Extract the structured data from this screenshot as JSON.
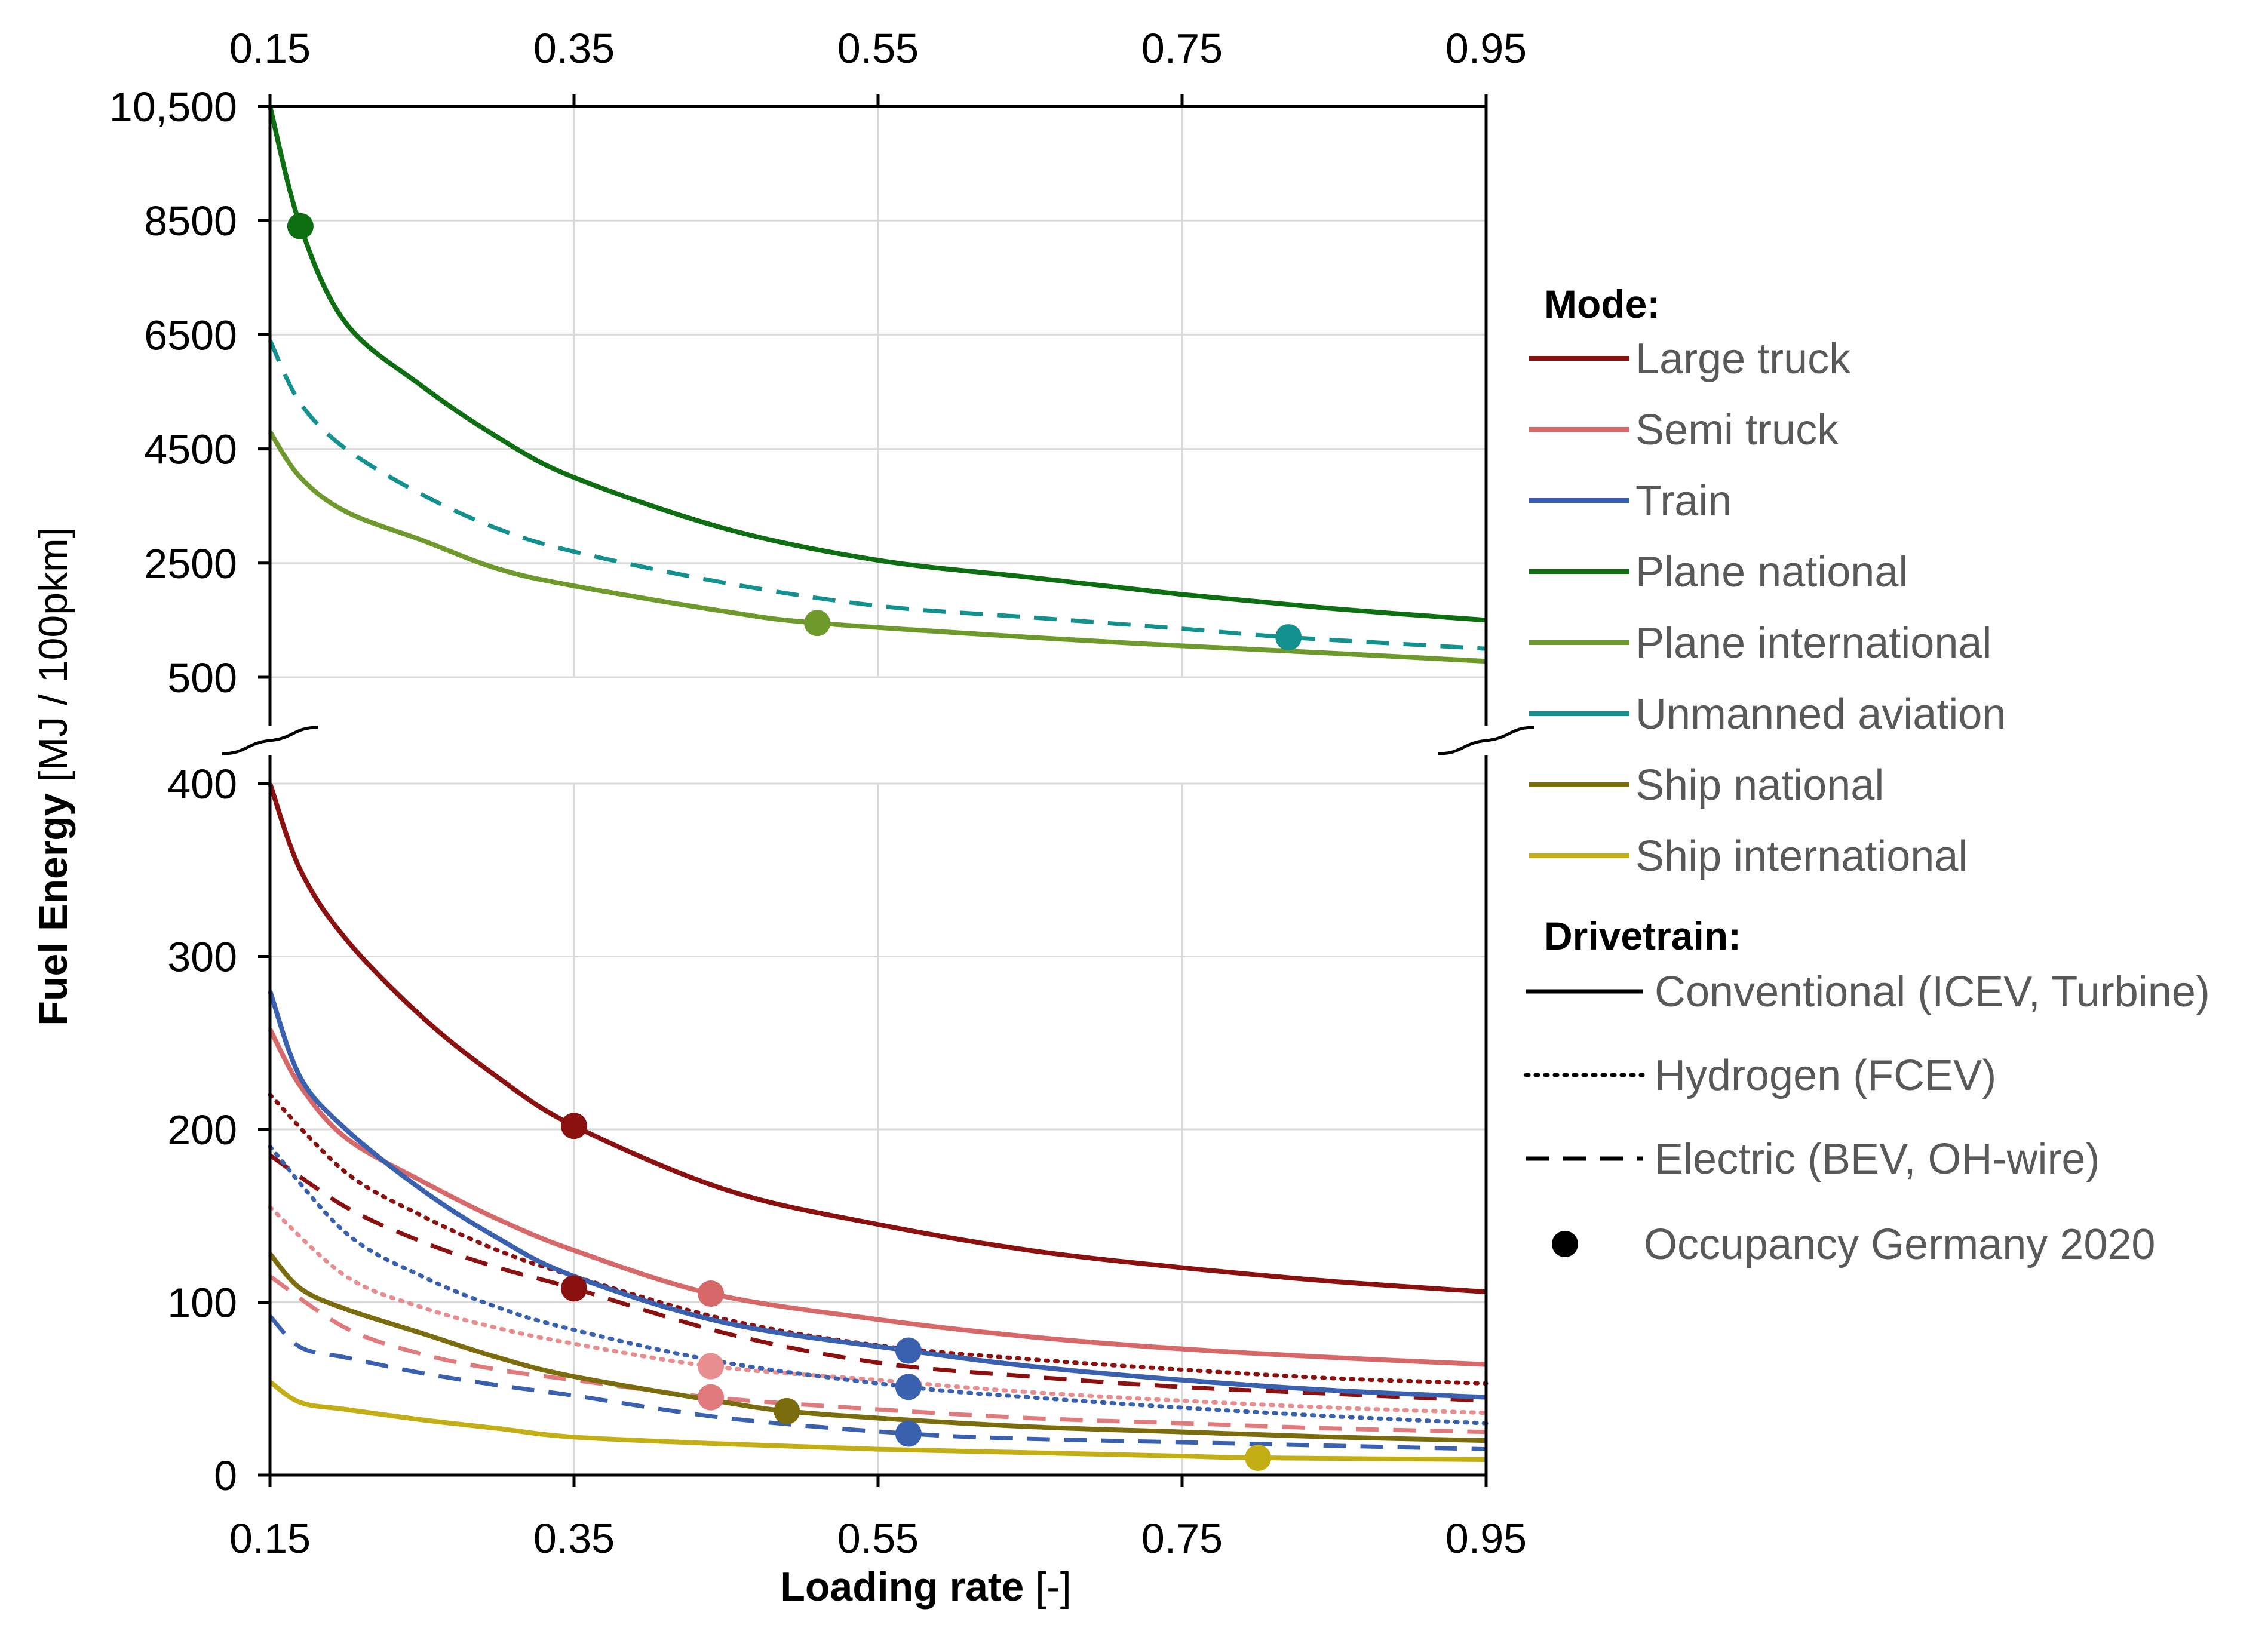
{
  "chart_data": {
    "type": "line",
    "title": "",
    "xlabel_bold": "Loading rate",
    "xlabel_unit": " [-]",
    "ylabel_bold": "Fuel Energy",
    "ylabel_unit": " [MJ / 100pkm]",
    "xlim": [
      0.15,
      0.95
    ],
    "x_ticks": [
      0.15,
      0.35,
      0.55,
      0.75,
      0.95
    ],
    "x_tick_labels": [
      "0.15",
      "0.35",
      "0.55",
      "0.75",
      "0.95"
    ],
    "upper_panel": {
      "ylim": [
        500,
        10500
      ],
      "y_ticks": [
        500,
        2500,
        4500,
        6500,
        8500,
        10500
      ],
      "y_tick_labels": [
        "500",
        "2500",
        "4500",
        "6500",
        "8500",
        "10,500"
      ]
    },
    "lower_panel": {
      "ylim": [
        0,
        400
      ],
      "y_ticks": [
        0,
        100,
        200,
        300,
        400
      ],
      "y_tick_labels": [
        "0",
        "100",
        "200",
        "300",
        "400"
      ]
    },
    "grid": true,
    "axis_break": true,
    "legend_position": "right",
    "series": [
      {
        "id": "plane-national-conventional",
        "mode": "Plane national",
        "drivetrain": "Conventional",
        "panel": "upper",
        "color": "#0e6e12",
        "dash": "solid",
        "x": [
          0.15,
          0.17,
          0.2,
          0.25,
          0.3,
          0.35,
          0.45,
          0.55,
          0.65,
          0.75,
          0.85,
          0.95
        ],
        "y": [
          10500,
          8400,
          6700,
          5600,
          4700,
          4000,
          3100,
          2550,
          2250,
          1950,
          1700,
          1500
        ],
        "occupancy": {
          "x": 0.17,
          "y": 8400
        }
      },
      {
        "id": "unmanned-aviation-electric",
        "mode": "Unmanned aviation",
        "drivetrain": "Electric",
        "panel": "upper",
        "color": "#13918f",
        "dash": "dashed",
        "x": [
          0.15,
          0.17,
          0.2,
          0.25,
          0.3,
          0.35,
          0.45,
          0.55,
          0.65,
          0.75,
          0.82,
          0.95
        ],
        "y": [
          6400,
          5300,
          4500,
          3700,
          3100,
          2700,
          2150,
          1750,
          1550,
          1350,
          1200,
          1000
        ],
        "occupancy": {
          "x": 0.82,
          "y": 1200
        }
      },
      {
        "id": "plane-international-conventional",
        "mode": "Plane international",
        "drivetrain": "Conventional",
        "panel": "upper",
        "color": "#6e9a2c",
        "dash": "solid",
        "x": [
          0.15,
          0.17,
          0.2,
          0.25,
          0.3,
          0.35,
          0.45,
          0.51,
          0.65,
          0.75,
          0.85,
          0.95
        ],
        "y": [
          4800,
          4000,
          3400,
          2900,
          2400,
          2100,
          1650,
          1450,
          1200,
          1050,
          920,
          780
        ],
        "occupancy": {
          "x": 0.51,
          "y": 1450
        }
      },
      {
        "id": "large-truck-conventional",
        "mode": "Large truck",
        "drivetrain": "Conventional",
        "panel": "lower",
        "color": "#8b1010",
        "dash": "solid",
        "x": [
          0.15,
          0.17,
          0.2,
          0.25,
          0.3,
          0.35,
          0.45,
          0.55,
          0.65,
          0.75,
          0.85,
          0.95
        ],
        "y": [
          400,
          350,
          310,
          265,
          230,
          202,
          165,
          145,
          130,
          120,
          112,
          106
        ],
        "occupancy": {
          "x": 0.35,
          "y": 202
        }
      },
      {
        "id": "large-truck-hydrogen",
        "mode": "Large truck",
        "drivetrain": "Hydrogen",
        "panel": "lower",
        "color": "#8b1010",
        "dash": "dotted",
        "x": [
          0.15,
          0.2,
          0.25,
          0.3,
          0.35,
          0.45,
          0.55,
          0.65,
          0.75,
          0.85,
          0.95
        ],
        "y": [
          220,
          175,
          150,
          130,
          115,
          90,
          75,
          67,
          61,
          56,
          53
        ],
        "occupancy": null
      },
      {
        "id": "large-truck-electric",
        "mode": "Large truck",
        "drivetrain": "Electric",
        "panel": "lower",
        "color": "#8b1010",
        "dash": "dashed",
        "x": [
          0.15,
          0.2,
          0.25,
          0.3,
          0.35,
          0.45,
          0.55,
          0.65,
          0.75,
          0.85,
          0.95
        ],
        "y": [
          185,
          155,
          135,
          120,
          108,
          82,
          65,
          57,
          51,
          47,
          43
        ],
        "occupancy": {
          "x": 0.35,
          "y": 108
        }
      },
      {
        "id": "semi-truck-conventional",
        "mode": "Semi truck",
        "drivetrain": "Conventional",
        "panel": "lower",
        "color": "#d6686a",
        "dash": "solid",
        "x": [
          0.15,
          0.17,
          0.2,
          0.25,
          0.3,
          0.35,
          0.44,
          0.55,
          0.65,
          0.75,
          0.85,
          0.95
        ],
        "y": [
          258,
          225,
          195,
          170,
          148,
          130,
          105,
          90,
          80,
          73,
          68,
          64
        ],
        "occupancy": {
          "x": 0.44,
          "y": 105
        }
      },
      {
        "id": "semi-truck-hydrogen",
        "mode": "Semi truck",
        "drivetrain": "Hydrogen",
        "panel": "lower",
        "color": "#e88e90",
        "dash": "dotted",
        "x": [
          0.15,
          0.2,
          0.25,
          0.3,
          0.35,
          0.44,
          0.55,
          0.65,
          0.75,
          0.85,
          0.95
        ],
        "y": [
          155,
          115,
          97,
          85,
          76,
          63,
          55,
          48,
          43,
          39,
          36
        ],
        "occupancy": {
          "x": 0.44,
          "y": 63
        }
      },
      {
        "id": "semi-truck-electric",
        "mode": "Semi truck",
        "drivetrain": "Electric",
        "panel": "lower",
        "color": "#e07a7c",
        "dash": "dashed",
        "x": [
          0.15,
          0.2,
          0.25,
          0.3,
          0.35,
          0.44,
          0.55,
          0.65,
          0.75,
          0.85,
          0.95
        ],
        "y": [
          115,
          85,
          70,
          61,
          55,
          45,
          38,
          33,
          30,
          27,
          25
        ],
        "occupancy": {
          "x": 0.44,
          "y": 45
        }
      },
      {
        "id": "train-conventional",
        "mode": "Train",
        "drivetrain": "Conventional",
        "panel": "lower",
        "color": "#3a61b0",
        "dash": "solid",
        "x": [
          0.15,
          0.17,
          0.2,
          0.25,
          0.3,
          0.35,
          0.45,
          0.57,
          0.65,
          0.75,
          0.85,
          0.95
        ],
        "y": [
          280,
          230,
          200,
          165,
          137,
          115,
          88,
          72,
          63,
          55,
          49,
          45
        ],
        "occupancy": {
          "x": 0.57,
          "y": 72
        }
      },
      {
        "id": "train-hydrogen",
        "mode": "Train",
        "drivetrain": "Hydrogen",
        "panel": "lower",
        "color": "#3a61b0",
        "dash": "dotted",
        "x": [
          0.15,
          0.2,
          0.25,
          0.3,
          0.35,
          0.45,
          0.57,
          0.65,
          0.75,
          0.85,
          0.95
        ],
        "y": [
          190,
          140,
          115,
          97,
          84,
          65,
          51,
          45,
          39,
          34,
          30
        ],
        "occupancy": {
          "x": 0.57,
          "y": 51
        }
      },
      {
        "id": "train-electric",
        "mode": "Train",
        "drivetrain": "Electric",
        "panel": "lower",
        "color": "#3a61b0",
        "dash": "dashed",
        "x": [
          0.15,
          0.17,
          0.2,
          0.25,
          0.3,
          0.35,
          0.45,
          0.57,
          0.65,
          0.75,
          0.85,
          0.95
        ],
        "y": [
          92,
          74,
          68,
          59,
          52,
          46,
          33,
          24,
          21,
          19,
          17,
          15
        ],
        "occupancy": {
          "x": 0.57,
          "y": 24
        }
      },
      {
        "id": "ship-national-conventional",
        "mode": "Ship national",
        "drivetrain": "Conventional",
        "panel": "lower",
        "color": "#7b6d0d",
        "dash": "solid",
        "x": [
          0.15,
          0.17,
          0.2,
          0.25,
          0.3,
          0.35,
          0.45,
          0.49,
          0.55,
          0.65,
          0.75,
          0.85,
          0.95
        ],
        "y": [
          128,
          108,
          96,
          82,
          68,
          57,
          42,
          37,
          33,
          28,
          25,
          22,
          20
        ],
        "occupancy": {
          "x": 0.49,
          "y": 37
        }
      },
      {
        "id": "ship-international-conventional",
        "mode": "Ship international",
        "drivetrain": "Conventional",
        "panel": "lower",
        "color": "#c4ae15",
        "dash": "solid",
        "x": [
          0.15,
          0.17,
          0.2,
          0.25,
          0.3,
          0.35,
          0.45,
          0.55,
          0.65,
          0.75,
          0.8,
          0.95
        ],
        "y": [
          54,
          42,
          38,
          32,
          27,
          22,
          18,
          15,
          13,
          11,
          10,
          9
        ],
        "occupancy": {
          "x": 0.8,
          "y": 10
        }
      }
    ],
    "legend": {
      "mode_title": "Mode:",
      "modes": [
        {
          "label": "Large truck",
          "color": "#8b1010"
        },
        {
          "label": "Semi truck",
          "color": "#d6686a"
        },
        {
          "label": "Train",
          "color": "#3a61b0"
        },
        {
          "label": "Plane national",
          "color": "#0e6e12"
        },
        {
          "label": "Plane international",
          "color": "#6e9a2c"
        },
        {
          "label": "Unmanned aviation",
          "color": "#13918f"
        },
        {
          "label": "Ship national",
          "color": "#7b6d0d"
        },
        {
          "label": "Ship international",
          "color": "#c4ae15"
        }
      ],
      "drivetrain_title": "Drivetrain:",
      "drivetrains": [
        {
          "label": "Conventional (ICEV, Turbine)",
          "dash": "solid"
        },
        {
          "label": "Hydrogen (FCEV)",
          "dash": "dotted"
        },
        {
          "label": "Electric (BEV, OH-wire)",
          "dash": "dashed"
        }
      ],
      "occupancy_label": "Occupancy Germany 2020"
    }
  }
}
